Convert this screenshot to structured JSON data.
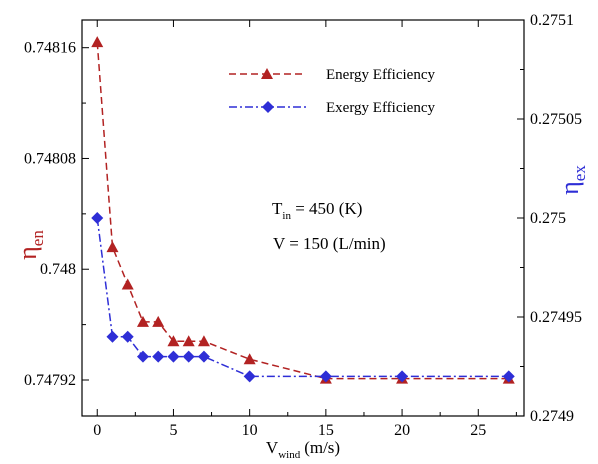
{
  "chart_data": {
    "type": "line",
    "x": [
      0,
      1,
      2,
      3,
      4,
      5,
      6,
      7,
      10,
      15,
      20,
      27
    ],
    "xlabel": {
      "main": "V",
      "sub": "wind",
      "unit": "(m/s)"
    },
    "xlim": [
      -1,
      28
    ],
    "xticks": [
      0,
      5,
      10,
      15,
      20,
      25
    ],
    "xtick_labels": [
      "0",
      "5",
      "10",
      "15",
      "20",
      "25"
    ],
    "y_left": {
      "label": {
        "main": "η",
        "sub": "en"
      },
      "color": "#b22222",
      "lim": [
        0.747894,
        0.74818
      ],
      "ticks": [
        0.74792,
        0.748,
        0.74808,
        0.74816
      ],
      "tick_labels": [
        "0.74792",
        "0.748",
        "0.74808",
        "0.74816"
      ]
    },
    "y_right": {
      "label": {
        "main": "η",
        "sub": "ex"
      },
      "color": "#2e2ed6",
      "lim": [
        0.2749,
        0.2751
      ],
      "ticks": [
        0.2749,
        0.27495,
        0.275,
        0.27505,
        0.2751
      ],
      "tick_labels": [
        "0.2749",
        "0.27495",
        "0.275",
        "0.27505",
        "0.2751"
      ]
    },
    "series": [
      {
        "name": "Energy Efficiency",
        "axis": "left",
        "color": "#b22222",
        "marker": "triangle",
        "line_style": "dashed",
        "values": [
          0.748164,
          0.748016,
          0.747989,
          0.747962,
          0.747962,
          0.747948,
          0.747948,
          0.747948,
          0.747935,
          0.747921,
          0.747921,
          0.747921
        ]
      },
      {
        "name": "Exergy Efficiency",
        "axis": "right",
        "color": "#2e2ed6",
        "marker": "diamond",
        "line_style": "dashdot",
        "values": [
          0.275,
          0.27494,
          0.27494,
          0.27493,
          0.27493,
          0.27493,
          0.27493,
          0.27493,
          0.27492,
          0.27492,
          0.27492,
          0.27492
        ]
      }
    ],
    "annotations": [
      {
        "main": "T",
        "sub": "in",
        "rest": " = 450 (K)"
      },
      {
        "main": "V = 150 (L/min)"
      }
    ],
    "legend_position": "top-right",
    "grid": false
  }
}
